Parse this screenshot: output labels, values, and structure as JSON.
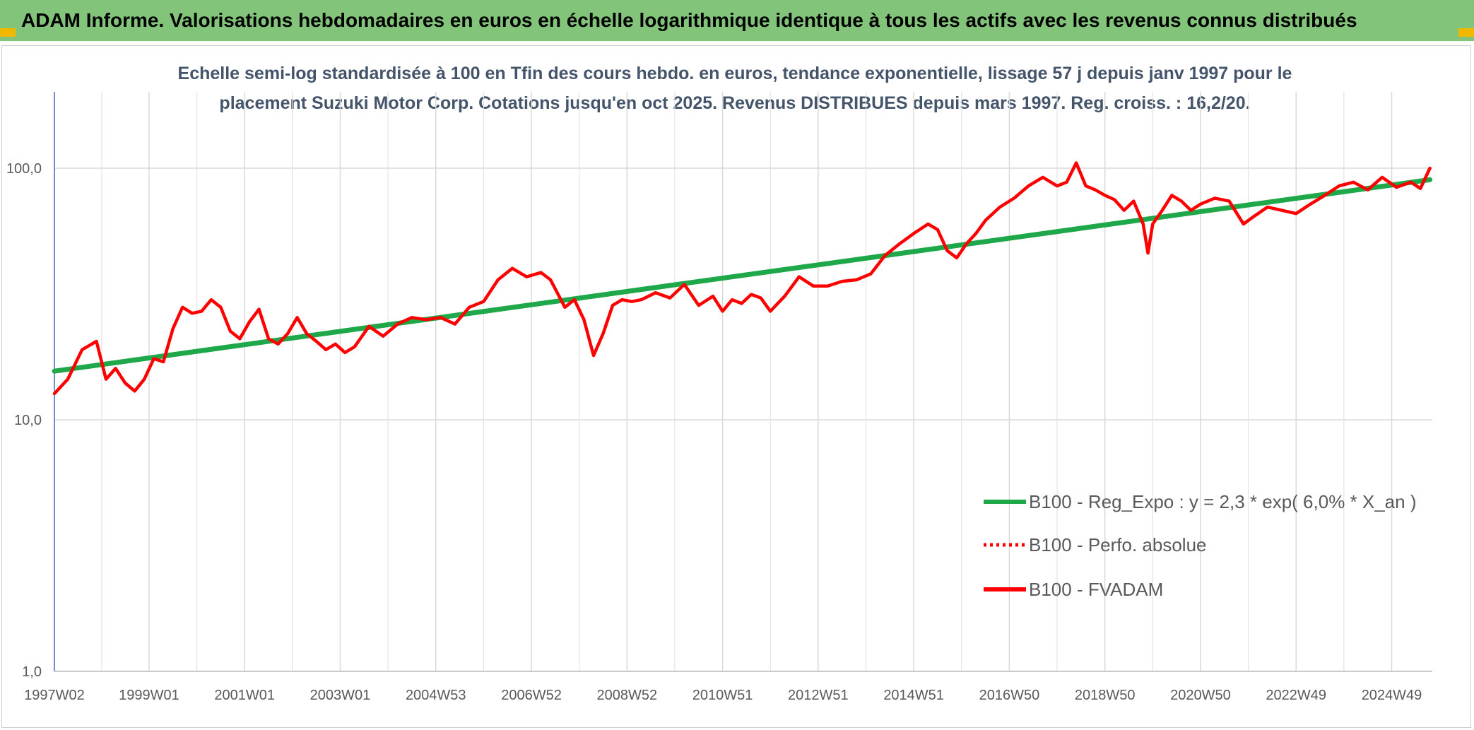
{
  "banner": {
    "title": "ADAM Informe. Valorisations hebdomadaires en euros en échelle logarithmique identique à tous les actifs avec les revenus connus distribués",
    "background": "#82c57a"
  },
  "chart_data": {
    "type": "line",
    "title_line1": "Echelle semi-log standardisée à 100 en Tfin des cours hebdo. en euros, tendance exponentielle, lissage 57 j depuis janv 1997 pour le",
    "title_line2": "placement Suzuki Motor Corp. Cotations jusqu'en oct 2025. Revenus DISTRIBUES depuis mars 1997. Reg. croiss. : 16,2/20.",
    "y_scale": "log",
    "ylim": [
      1,
      200
    ],
    "y_ticks": [
      {
        "value": 1,
        "label": "1,0"
      },
      {
        "value": 10,
        "label": "10,0"
      },
      {
        "value": 100,
        "label": "100,0"
      }
    ],
    "xlim": [
      1997.02,
      2025.85
    ],
    "x_ticks": [
      {
        "value": 1997.02,
        "label": "1997W02"
      },
      {
        "value": 1999.0,
        "label": "1999W01"
      },
      {
        "value": 2001.0,
        "label": "2001W01"
      },
      {
        "value": 2003.0,
        "label": "2003W01"
      },
      {
        "value": 2005.0,
        "label": "2004W53"
      },
      {
        "value": 2007.0,
        "label": "2006W52"
      },
      {
        "value": 2009.0,
        "label": "2008W52"
      },
      {
        "value": 2011.0,
        "label": "2010W51"
      },
      {
        "value": 2013.0,
        "label": "2012W51"
      },
      {
        "value": 2015.0,
        "label": "2014W51"
      },
      {
        "value": 2017.0,
        "label": "2016W50"
      },
      {
        "value": 2019.0,
        "label": "2018W50"
      },
      {
        "value": 2021.0,
        "label": "2020W50"
      },
      {
        "value": 2023.0,
        "label": "2022W49"
      },
      {
        "value": 2025.0,
        "label": "2024W49"
      }
    ],
    "grid": "vertical and horizontal",
    "legend_position": "bottom-right",
    "series": [
      {
        "name": "B100 - Reg_Expo : y = 2,3 * exp( 6,0% *  X_an )",
        "color": "#1fa84a",
        "style": "solid",
        "x": [
          1997.02,
          2025.8
        ],
        "y": [
          15.6,
          90.0
        ]
      },
      {
        "name": "B100 - Perfo. absolue",
        "color": "#ff0000",
        "style": "dotted",
        "x": [],
        "y": []
      },
      {
        "name": "B100 - FVADAM",
        "color": "#ff0000",
        "style": "solid",
        "x": [
          1997.02,
          1997.3,
          1997.6,
          1997.9,
          1998.1,
          1998.3,
          1998.5,
          1998.7,
          1998.9,
          1999.1,
          1999.3,
          1999.5,
          1999.7,
          1999.9,
          2000.1,
          2000.3,
          2000.5,
          2000.7,
          2000.9,
          2001.1,
          2001.3,
          2001.5,
          2001.7,
          2001.9,
          2002.1,
          2002.3,
          2002.5,
          2002.7,
          2002.9,
          2003.1,
          2003.3,
          2003.6,
          2003.9,
          2004.2,
          2004.5,
          2004.8,
          2005.1,
          2005.4,
          2005.7,
          2006.0,
          2006.3,
          2006.6,
          2006.9,
          2007.2,
          2007.4,
          2007.7,
          2007.9,
          2008.1,
          2008.3,
          2008.5,
          2008.7,
          2008.9,
          2009.1,
          2009.3,
          2009.6,
          2009.9,
          2010.2,
          2010.5,
          2010.8,
          2011.0,
          2011.2,
          2011.4,
          2011.6,
          2011.8,
          2012.0,
          2012.3,
          2012.6,
          2012.9,
          2013.2,
          2013.5,
          2013.8,
          2014.1,
          2014.4,
          2014.7,
          2015.0,
          2015.3,
          2015.5,
          2015.7,
          2015.9,
          2016.1,
          2016.3,
          2016.5,
          2016.8,
          2017.1,
          2017.4,
          2017.7,
          2018.0,
          2018.2,
          2018.4,
          2018.6,
          2018.8,
          2019.0,
          2019.2,
          2019.4,
          2019.6,
          2019.8,
          2019.9,
          2020.0,
          2020.2,
          2020.4,
          2020.6,
          2020.8,
          2021.0,
          2021.3,
          2021.6,
          2021.9,
          2022.1,
          2022.4,
          2022.7,
          2023.0,
          2023.3,
          2023.6,
          2023.9,
          2024.2,
          2024.5,
          2024.8,
          2025.1,
          2025.4,
          2025.6,
          2025.8
        ],
        "y": [
          12.7,
          14.5,
          19.0,
          20.5,
          14.5,
          16.0,
          14.0,
          13.0,
          14.5,
          17.5,
          17.0,
          23.0,
          28.0,
          26.5,
          27.0,
          30.0,
          28.0,
          22.5,
          21.0,
          24.5,
          27.5,
          21.0,
          20.0,
          22.0,
          25.5,
          22.0,
          20.5,
          19.0,
          20.0,
          18.5,
          19.5,
          23.5,
          21.5,
          24.0,
          25.5,
          25.0,
          25.5,
          24.0,
          28.0,
          29.5,
          36.0,
          40.0,
          37.0,
          38.5,
          36.0,
          28.0,
          30.0,
          25.0,
          18.0,
          22.0,
          28.5,
          30.0,
          29.5,
          30.0,
          32.0,
          30.5,
          34.5,
          28.5,
          31.0,
          27.0,
          30.0,
          29.0,
          31.5,
          30.5,
          27.0,
          31.0,
          37.0,
          34.0,
          34.0,
          35.5,
          36.0,
          38.0,
          45.0,
          50.0,
          55.0,
          60.0,
          57.0,
          47.0,
          44.0,
          50.0,
          55.0,
          62.0,
          70.0,
          76.0,
          85.0,
          92.0,
          85.0,
          88.0,
          105.0,
          85.0,
          82.0,
          78.0,
          75.0,
          68.0,
          74.0,
          60.0,
          46.0,
          60.0,
          68.0,
          78.0,
          74.0,
          68.0,
          72.0,
          76.0,
          74.0,
          60.0,
          64.0,
          70.0,
          68.0,
          66.0,
          72.0,
          78.0,
          85.0,
          88.0,
          82.0,
          92.0,
          84.0,
          88.0,
          83.0,
          100.0
        ]
      }
    ]
  }
}
